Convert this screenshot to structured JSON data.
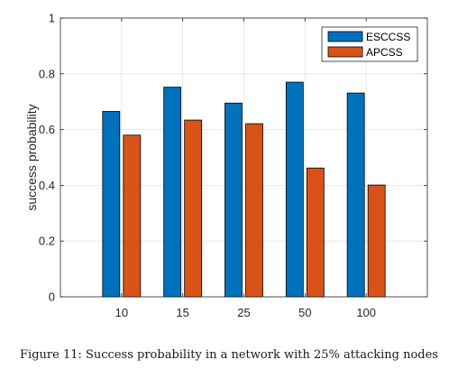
{
  "chart_data": {
    "type": "bar",
    "categories": [
      "10",
      "15",
      "25",
      "50",
      "100"
    ],
    "series": [
      {
        "name": "ESCCSS",
        "values": [
          0.665,
          0.752,
          0.695,
          0.77,
          0.731
        ]
      },
      {
        "name": "APCSS",
        "values": [
          0.58,
          0.634,
          0.621,
          0.462,
          0.401
        ]
      }
    ],
    "xlabel": "",
    "ylabel": "success probability",
    "ylim": [
      0,
      1
    ],
    "yticks": [
      "0",
      "0.2",
      "0.4",
      "0.6",
      "0.8",
      "1"
    ],
    "grid": true,
    "legend_position": "top-right",
    "colors": {
      "ESCCSS": "#0072BD",
      "APCSS": "#D95319"
    }
  },
  "caption": "Figure 11: Success probability in a network with 25% attacking nodes"
}
